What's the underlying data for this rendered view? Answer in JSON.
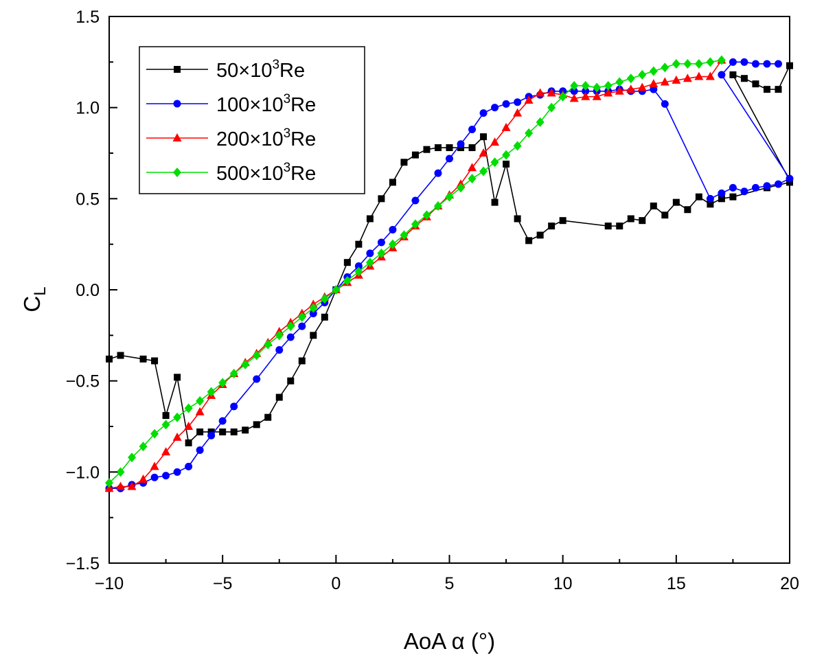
{
  "chart_data": {
    "type": "line",
    "title": "",
    "xlabel": "AoA α (°)",
    "ylabel": {
      "base": "C",
      "subscript": "L"
    },
    "xlim": [
      -10,
      20
    ],
    "ylim": [
      -1.5,
      1.5
    ],
    "x_ticks": [
      -10,
      -5,
      0,
      5,
      10,
      15,
      20
    ],
    "x_tick_labels": [
      "−10",
      "−5",
      "0",
      "5",
      "10",
      "15",
      "20"
    ],
    "y_ticks": [
      -1.5,
      -1.0,
      -0.5,
      0.0,
      0.5,
      1.0,
      1.5
    ],
    "y_tick_labels": [
      "−1.5",
      "−1.0",
      "−0.5",
      "0.0",
      "0.5",
      "1.0",
      "1.5"
    ],
    "grid": false,
    "legend_position": "top-left",
    "series": [
      {
        "name": "50×10³Re",
        "label_base": "50×10",
        "label_sup": "3",
        "label_tail": "Re",
        "color": "#000000",
        "marker": "square",
        "points": [
          [
            -10,
            -0.38
          ],
          [
            -9.5,
            -0.36
          ],
          [
            -8.5,
            -0.38
          ],
          [
            -8,
            -0.39
          ],
          [
            -7.5,
            -0.69
          ],
          [
            -7,
            -0.48
          ],
          [
            -6.5,
            -0.84
          ],
          [
            -6,
            -0.78
          ],
          [
            -5.5,
            -0.78
          ],
          [
            -5,
            -0.78
          ],
          [
            -4.5,
            -0.78
          ],
          [
            -4,
            -0.77
          ],
          [
            -3.5,
            -0.74
          ],
          [
            -3,
            -0.7
          ],
          [
            -2.5,
            -0.59
          ],
          [
            -2,
            -0.5
          ],
          [
            -1.5,
            -0.39
          ],
          [
            -1,
            -0.25
          ],
          [
            -0.5,
            -0.15
          ],
          [
            0,
            0.0
          ],
          [
            0.5,
            0.15
          ],
          [
            1,
            0.25
          ],
          [
            1.5,
            0.39
          ],
          [
            2,
            0.5
          ],
          [
            2.5,
            0.59
          ],
          [
            3,
            0.7
          ],
          [
            3.5,
            0.74
          ],
          [
            4,
            0.77
          ],
          [
            4.5,
            0.78
          ],
          [
            5,
            0.78
          ],
          [
            5.5,
            0.78
          ],
          [
            6,
            0.78
          ],
          [
            6.5,
            0.84
          ],
          [
            7,
            0.48
          ],
          [
            7.5,
            0.69
          ],
          [
            8,
            0.39
          ],
          [
            8.5,
            0.27
          ],
          [
            9,
            0.3
          ],
          [
            9.5,
            0.35
          ],
          [
            10,
            0.38
          ],
          [
            12,
            0.35
          ],
          [
            12.5,
            0.35
          ],
          [
            13,
            0.39
          ],
          [
            13.5,
            0.38
          ],
          [
            14,
            0.46
          ],
          [
            14.5,
            0.41
          ],
          [
            15,
            0.48
          ],
          [
            15.5,
            0.44
          ],
          [
            16,
            0.51
          ],
          [
            16.5,
            0.47
          ],
          [
            17,
            0.5
          ],
          [
            17.5,
            0.51
          ],
          [
            19,
            0.56
          ],
          [
            20,
            0.59
          ],
          [
            20,
            1.23
          ],
          [
            19.5,
            1.1
          ],
          [
            19,
            1.1
          ],
          [
            18.5,
            1.13
          ],
          [
            18,
            1.16
          ],
          [
            17.5,
            1.18
          ],
          [
            20,
            0.6
          ]
        ]
      },
      {
        "name": "100×10³Re",
        "label_base": "100×10",
        "label_sup": "3",
        "label_tail": "Re",
        "color": "#0000ff",
        "marker": "circle",
        "points": [
          [
            -10,
            -1.09
          ],
          [
            -9.5,
            -1.09
          ],
          [
            -9,
            -1.07
          ],
          [
            -8.5,
            -1.06
          ],
          [
            -8,
            -1.03
          ],
          [
            -7.5,
            -1.02
          ],
          [
            -7,
            -1.0
          ],
          [
            -6.5,
            -0.97
          ],
          [
            -6,
            -0.88
          ],
          [
            -5.5,
            -0.8
          ],
          [
            -5,
            -0.72
          ],
          [
            -4.5,
            -0.64
          ],
          [
            -3.5,
            -0.49
          ],
          [
            -2.5,
            -0.33
          ],
          [
            -2,
            -0.26
          ],
          [
            -1.5,
            -0.2
          ],
          [
            -1,
            -0.13
          ],
          [
            -0.5,
            -0.07
          ],
          [
            0,
            0.0
          ],
          [
            0.5,
            0.07
          ],
          [
            1,
            0.13
          ],
          [
            1.5,
            0.2
          ],
          [
            2,
            0.26
          ],
          [
            2.5,
            0.33
          ],
          [
            3.5,
            0.49
          ],
          [
            4.5,
            0.64
          ],
          [
            5,
            0.72
          ],
          [
            5.5,
            0.8
          ],
          [
            6,
            0.88
          ],
          [
            6.5,
            0.97
          ],
          [
            7,
            1.0
          ],
          [
            7.5,
            1.02
          ],
          [
            8,
            1.03
          ],
          [
            8.5,
            1.06
          ],
          [
            9,
            1.07
          ],
          [
            9.5,
            1.09
          ],
          [
            10,
            1.09
          ],
          [
            10.5,
            1.09
          ],
          [
            11,
            1.09
          ],
          [
            11.5,
            1.09
          ],
          [
            12,
            1.09
          ],
          [
            12.5,
            1.1
          ],
          [
            13,
            1.09
          ],
          [
            13.5,
            1.09
          ],
          [
            14,
            1.1
          ],
          [
            14.5,
            1.02
          ],
          [
            16.5,
            0.5
          ],
          [
            17,
            0.53
          ],
          [
            17.5,
            0.56
          ],
          [
            18,
            0.54
          ],
          [
            18.5,
            0.56
          ],
          [
            19,
            0.57
          ],
          [
            19.5,
            0.58
          ],
          [
            20,
            0.61
          ],
          [
            17,
            1.18
          ],
          [
            17.5,
            1.25
          ],
          [
            18,
            1.25
          ],
          [
            18.5,
            1.24
          ],
          [
            19,
            1.24
          ],
          [
            19.5,
            1.24
          ]
        ]
      },
      {
        "name": "200×10³Re",
        "label_base": "200×10",
        "label_sup": "3",
        "label_tail": "Re",
        "color": "#ff0000",
        "marker": "triangle",
        "points": [
          [
            -10,
            -1.09
          ],
          [
            -9.5,
            -1.08
          ],
          [
            -9,
            -1.08
          ],
          [
            -8.5,
            -1.04
          ],
          [
            -8,
            -0.97
          ],
          [
            -7.5,
            -0.89
          ],
          [
            -7,
            -0.81
          ],
          [
            -6.5,
            -0.75
          ],
          [
            -6,
            -0.67
          ],
          [
            -5.5,
            -0.58
          ],
          [
            -5,
            -0.52
          ],
          [
            -4.5,
            -0.46
          ],
          [
            -4,
            -0.4
          ],
          [
            -3.5,
            -0.35
          ],
          [
            -3,
            -0.29
          ],
          [
            -2.5,
            -0.23
          ],
          [
            -2,
            -0.18
          ],
          [
            -1.5,
            -0.13
          ],
          [
            -1,
            -0.08
          ],
          [
            -0.5,
            -0.04
          ],
          [
            0,
            0.0
          ],
          [
            0.5,
            0.04
          ],
          [
            1,
            0.08
          ],
          [
            1.5,
            0.13
          ],
          [
            2,
            0.18
          ],
          [
            2.5,
            0.23
          ],
          [
            3,
            0.29
          ],
          [
            3.5,
            0.35
          ],
          [
            4,
            0.4
          ],
          [
            4.5,
            0.46
          ],
          [
            5,
            0.52
          ],
          [
            5.5,
            0.58
          ],
          [
            6,
            0.67
          ],
          [
            6.5,
            0.75
          ],
          [
            7,
            0.81
          ],
          [
            7.5,
            0.89
          ],
          [
            8,
            0.97
          ],
          [
            8.5,
            1.04
          ],
          [
            9,
            1.08
          ],
          [
            9.5,
            1.08
          ],
          [
            10,
            1.07
          ],
          [
            10.5,
            1.05
          ],
          [
            11,
            1.06
          ],
          [
            11.5,
            1.06
          ],
          [
            12,
            1.08
          ],
          [
            12.5,
            1.09
          ],
          [
            13,
            1.1
          ],
          [
            13.5,
            1.11
          ],
          [
            14,
            1.13
          ],
          [
            14.5,
            1.14
          ],
          [
            15,
            1.15
          ],
          [
            15.5,
            1.16
          ],
          [
            16,
            1.17
          ],
          [
            16.5,
            1.17
          ],
          [
            17,
            1.26
          ]
        ]
      },
      {
        "name": "500×10³Re",
        "label_base": "500×10",
        "label_sup": "3",
        "label_tail": "Re",
        "color": "#00dd00",
        "marker": "diamond",
        "points": [
          [
            -10,
            -1.06
          ],
          [
            -9.5,
            -1.0
          ],
          [
            -9,
            -0.92
          ],
          [
            -8.5,
            -0.86
          ],
          [
            -8,
            -0.79
          ],
          [
            -7.5,
            -0.74
          ],
          [
            -7,
            -0.7
          ],
          [
            -6.5,
            -0.65
          ],
          [
            -6,
            -0.61
          ],
          [
            -5.5,
            -0.56
          ],
          [
            -5,
            -0.51
          ],
          [
            -4.5,
            -0.46
          ],
          [
            -4,
            -0.41
          ],
          [
            -3.5,
            -0.36
          ],
          [
            -3,
            -0.3
          ],
          [
            -2.5,
            -0.25
          ],
          [
            -2,
            -0.2
          ],
          [
            -1.5,
            -0.15
          ],
          [
            -1,
            -0.1
          ],
          [
            -0.5,
            -0.05
          ],
          [
            0,
            0.0
          ],
          [
            0.5,
            0.05
          ],
          [
            1,
            0.1
          ],
          [
            1.5,
            0.15
          ],
          [
            2,
            0.2
          ],
          [
            2.5,
            0.25
          ],
          [
            3,
            0.3
          ],
          [
            3.5,
            0.36
          ],
          [
            4,
            0.41
          ],
          [
            4.5,
            0.46
          ],
          [
            5,
            0.51
          ],
          [
            5.5,
            0.56
          ],
          [
            6,
            0.61
          ],
          [
            6.5,
            0.65
          ],
          [
            7,
            0.7
          ],
          [
            7.5,
            0.74
          ],
          [
            8,
            0.79
          ],
          [
            8.5,
            0.86
          ],
          [
            9,
            0.92
          ],
          [
            9.5,
            1.0
          ],
          [
            10,
            1.06
          ],
          [
            10.5,
            1.12
          ],
          [
            11,
            1.12
          ],
          [
            11.5,
            1.11
          ],
          [
            12,
            1.12
          ],
          [
            12.5,
            1.14
          ],
          [
            13,
            1.16
          ],
          [
            13.5,
            1.18
          ],
          [
            14,
            1.2
          ],
          [
            14.5,
            1.22
          ],
          [
            15,
            1.24
          ],
          [
            15.5,
            1.24
          ],
          [
            16,
            1.24
          ],
          [
            16.5,
            1.25
          ],
          [
            17,
            1.26
          ]
        ]
      }
    ]
  }
}
